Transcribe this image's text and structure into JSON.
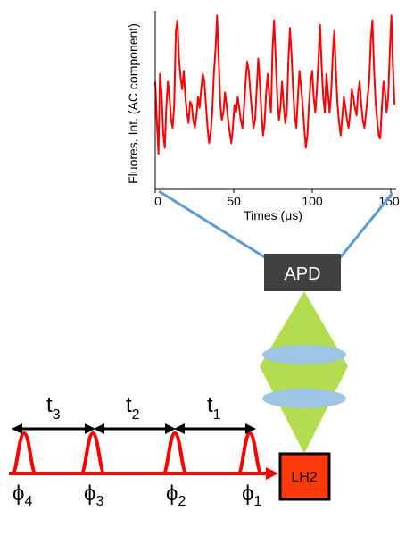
{
  "chart_data": {
    "type": "line",
    "ylabel": "Fluores. Int. (AC component)",
    "xlabel": "Times (μs)",
    "xlim": [
      0,
      152
    ],
    "x_ticks": [
      "0",
      "50",
      "100",
      "150"
    ],
    "grid": false,
    "series": [
      {
        "color": "#ff0000",
        "x": [
          0,
          1,
          2,
          3,
          4,
          5,
          6,
          7,
          8,
          9,
          10,
          11,
          12,
          13,
          14,
          15,
          16,
          17,
          18,
          19,
          20,
          21,
          22,
          23,
          24,
          25,
          26,
          27,
          28,
          29,
          30,
          31,
          32,
          33,
          34,
          35,
          36,
          37,
          38,
          39,
          40,
          41,
          42,
          43,
          44,
          45,
          46,
          47,
          48,
          49,
          50,
          51,
          52,
          53,
          54,
          55,
          56,
          57,
          58,
          59,
          60,
          61,
          62,
          63,
          64,
          65,
          66,
          67,
          68,
          69,
          70,
          71,
          72,
          73,
          74,
          75,
          76,
          77,
          78,
          79,
          80,
          81,
          82,
          83,
          84,
          85,
          86,
          87,
          88,
          89,
          90,
          91,
          92,
          93,
          94,
          95,
          96,
          97,
          98,
          99,
          100,
          101,
          102,
          103,
          104,
          105,
          106,
          107,
          108,
          109,
          110,
          111,
          112,
          113,
          114,
          115,
          116,
          117,
          118,
          119,
          120,
          121,
          122,
          123,
          124,
          125,
          126,
          127,
          128,
          129,
          130,
          131,
          132,
          133,
          134,
          135,
          136,
          137,
          138,
          139,
          140,
          141,
          142,
          143,
          144,
          145,
          146,
          147,
          148,
          149,
          150,
          151
        ],
        "values": [
          0.55,
          0.3,
          0.08,
          0.6,
          0.48,
          0.22,
          0.12,
          0.38,
          0.55,
          0.45,
          0.3,
          0.25,
          0.4,
          0.88,
          0.95,
          0.7,
          0.58,
          0.5,
          0.62,
          0.45,
          0.35,
          0.28,
          0.42,
          0.4,
          0.3,
          0.25,
          0.33,
          0.45,
          0.38,
          0.5,
          0.6,
          0.55,
          0.4,
          0.25,
          0.15,
          0.22,
          0.35,
          0.6,
          0.75,
          0.98,
          0.7,
          0.42,
          0.3,
          0.35,
          0.48,
          0.4,
          0.3,
          0.22,
          0.15,
          0.25,
          0.4,
          0.35,
          0.45,
          0.38,
          0.3,
          0.25,
          0.38,
          0.55,
          0.68,
          0.62,
          0.48,
          0.35,
          0.25,
          0.3,
          0.5,
          0.7,
          0.55,
          0.35,
          0.2,
          0.28,
          0.48,
          0.6,
          0.45,
          0.35,
          0.75,
          0.95,
          0.7,
          0.45,
          0.3,
          0.38,
          0.55,
          0.4,
          0.28,
          0.35,
          0.68,
          0.9,
          0.72,
          0.5,
          0.32,
          0.25,
          0.45,
          0.62,
          0.52,
          0.4,
          0.25,
          0.12,
          0.2,
          0.4,
          0.55,
          0.62,
          0.45,
          0.35,
          0.5,
          0.7,
          0.92,
          0.65,
          0.45,
          0.35,
          0.6,
          0.48,
          0.35,
          0.48,
          0.72,
          0.88,
          0.62,
          0.4,
          0.28,
          0.2,
          0.32,
          0.45,
          0.38,
          0.3,
          0.25,
          0.35,
          0.5,
          0.45,
          0.38,
          0.33,
          0.48,
          0.55,
          0.4,
          0.3,
          0.25,
          0.35,
          0.45,
          0.55,
          0.82,
          0.95,
          0.65,
          0.42,
          0.3,
          0.2,
          0.18,
          0.38,
          0.55,
          0.48,
          0.35,
          0.45,
          0.75,
          0.98,
          0.65,
          0.4
        ]
      }
    ]
  },
  "diagram": {
    "detector_label": "APD",
    "sample_label": "LH2",
    "intervals": [
      {
        "base": "t",
        "sub": "3"
      },
      {
        "base": "t",
        "sub": "2"
      },
      {
        "base": "t",
        "sub": "1"
      }
    ],
    "phases": [
      {
        "base": "ϕ",
        "sub": "4"
      },
      {
        "base": "ϕ",
        "sub": "3"
      },
      {
        "base": "ϕ",
        "sub": "2"
      },
      {
        "base": "ϕ",
        "sub": "1"
      }
    ],
    "colors": {
      "signal": "#ff0000",
      "detector_box": "#404040",
      "sample_box": "#ff3a0a",
      "light_cone": "#b4dc50",
      "lens": "#9ec5e6",
      "connector": "#5b9bd5"
    }
  }
}
